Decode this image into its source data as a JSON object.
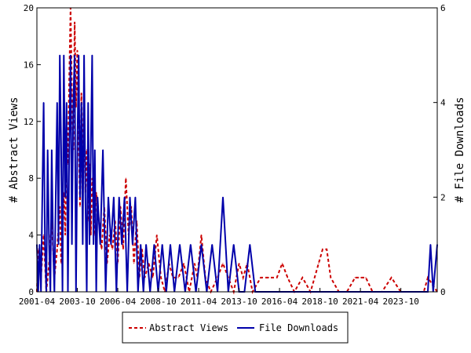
{
  "chart_data": {
    "type": "line",
    "title": "",
    "x_tick_labels": [
      "2001-04",
      "2003-10",
      "2006-04",
      "2008-10",
      "2011-04",
      "2013-10",
      "2016-04",
      "2018-10",
      "2021-04",
      "2023-10"
    ],
    "x_range": [
      "2001-04",
      "2026-01"
    ],
    "ylabel_left": "# Abstract Views",
    "ylabel_right": "# File Downloads",
    "ylim_left": [
      0,
      20
    ],
    "ylim_right": [
      0,
      6
    ],
    "y_ticks_left": [
      0,
      4,
      8,
      12,
      16,
      20
    ],
    "y_ticks_right": [
      0,
      2,
      4,
      6
    ],
    "grid": false,
    "legend_position": "bottom-center",
    "series": [
      {
        "name": "Abstract Views",
        "axis": "left",
        "style": "dashed",
        "color": "#cc0000",
        "points": [
          [
            "2001-04",
            0
          ],
          [
            "2001-05",
            3
          ],
          [
            "2001-07",
            1
          ],
          [
            "2001-09",
            4
          ],
          [
            "2001-11",
            0
          ],
          [
            "2002-01",
            2
          ],
          [
            "2002-03",
            5
          ],
          [
            "2002-05",
            1
          ],
          [
            "2002-07",
            3
          ],
          [
            "2002-09",
            6
          ],
          [
            "2002-10",
            2
          ],
          [
            "2002-12",
            7
          ],
          [
            "2003-01",
            4
          ],
          [
            "2003-02",
            12
          ],
          [
            "2003-03",
            9
          ],
          [
            "2003-04",
            15
          ],
          [
            "2003-05",
            20
          ],
          [
            "2003-06",
            14
          ],
          [
            "2003-07",
            10
          ],
          [
            "2003-08",
            19
          ],
          [
            "2003-09",
            13
          ],
          [
            "2003-10",
            17
          ],
          [
            "2003-11",
            11
          ],
          [
            "2003-12",
            6
          ],
          [
            "2004-01",
            14
          ],
          [
            "2004-02",
            9
          ],
          [
            "2004-03",
            12
          ],
          [
            "2004-04",
            7
          ],
          [
            "2004-05",
            10
          ],
          [
            "2004-06",
            5
          ],
          [
            "2004-07",
            9
          ],
          [
            "2004-08",
            4
          ],
          [
            "2004-09",
            8
          ],
          [
            "2004-10",
            6
          ],
          [
            "2004-11",
            4
          ],
          [
            "2004-12",
            7
          ],
          [
            "2005-02",
            5
          ],
          [
            "2005-04",
            3
          ],
          [
            "2005-06",
            6
          ],
          [
            "2005-08",
            2
          ],
          [
            "2005-10",
            4
          ],
          [
            "2005-12",
            3
          ],
          [
            "2006-02",
            5
          ],
          [
            "2006-04",
            2
          ],
          [
            "2006-06",
            6
          ],
          [
            "2006-08",
            3
          ],
          [
            "2006-10",
            8
          ],
          [
            "2006-12",
            4
          ],
          [
            "2007-02",
            6
          ],
          [
            "2007-04",
            2
          ],
          [
            "2007-06",
            5
          ],
          [
            "2007-08",
            1
          ],
          [
            "2007-10",
            3
          ],
          [
            "2007-12",
            1
          ],
          [
            "2008-03",
            2
          ],
          [
            "2008-06",
            1
          ],
          [
            "2008-09",
            4
          ],
          [
            "2008-12",
            1
          ],
          [
            "2009-03",
            0
          ],
          [
            "2009-06",
            2
          ],
          [
            "2009-09",
            1
          ],
          [
            "2010-01",
            1
          ],
          [
            "2010-05",
            2
          ],
          [
            "2010-09",
            0
          ],
          [
            "2011-01",
            2
          ],
          [
            "2011-03",
            1
          ],
          [
            "2011-06",
            4
          ],
          [
            "2011-09",
            1
          ],
          [
            "2012-01",
            0
          ],
          [
            "2012-06",
            1
          ],
          [
            "2012-10",
            2
          ],
          [
            "2013-02",
            1
          ],
          [
            "2013-06",
            0
          ],
          [
            "2013-10",
            2
          ],
          [
            "2014-01",
            1
          ],
          [
            "2014-04",
            2
          ],
          [
            "2014-08",
            0
          ],
          [
            "2015-02",
            1
          ],
          [
            "2015-08",
            1
          ],
          [
            "2016-02",
            1
          ],
          [
            "2016-06",
            2
          ],
          [
            "2016-10",
            1
          ],
          [
            "2017-03",
            0
          ],
          [
            "2017-09",
            1
          ],
          [
            "2018-03",
            0
          ],
          [
            "2018-09",
            2
          ],
          [
            "2018-12",
            3
          ],
          [
            "2019-03",
            3
          ],
          [
            "2019-06",
            1
          ],
          [
            "2019-12",
            0
          ],
          [
            "2020-06",
            0
          ],
          [
            "2020-12",
            1
          ],
          [
            "2021-04",
            1
          ],
          [
            "2021-08",
            1
          ],
          [
            "2022-01",
            0
          ],
          [
            "2022-08",
            0
          ],
          [
            "2023-03",
            1
          ],
          [
            "2023-10",
            0
          ],
          [
            "2024-06",
            0
          ],
          [
            "2025-03",
            0
          ],
          [
            "2025-06",
            1
          ],
          [
            "2026-01",
            0
          ]
        ]
      },
      {
        "name": "File Downloads",
        "axis": "right",
        "style": "solid",
        "color": "#0000aa",
        "points": [
          [
            "2001-04",
            1
          ],
          [
            "2001-05",
            0
          ],
          [
            "2001-06",
            1
          ],
          [
            "2001-07",
            0
          ],
          [
            "2001-08",
            2
          ],
          [
            "2001-09",
            4
          ],
          [
            "2001-10",
            1
          ],
          [
            "2001-11",
            0
          ],
          [
            "2001-12",
            3
          ],
          [
            "2002-01",
            1
          ],
          [
            "2002-02",
            0
          ],
          [
            "2002-03",
            3
          ],
          [
            "2002-04",
            1
          ],
          [
            "2002-05",
            0
          ],
          [
            "2002-06",
            2
          ],
          [
            "2002-07",
            4
          ],
          [
            "2002-08",
            1
          ],
          [
            "2002-09",
            5
          ],
          [
            "2002-10",
            3
          ],
          [
            "2002-11",
            0
          ],
          [
            "2002-12",
            5
          ],
          [
            "2003-01",
            2
          ],
          [
            "2003-02",
            4
          ],
          [
            "2003-03",
            0
          ],
          [
            "2003-04",
            3
          ],
          [
            "2003-05",
            5
          ],
          [
            "2003-06",
            1
          ],
          [
            "2003-07",
            4
          ],
          [
            "2003-08",
            5
          ],
          [
            "2003-09",
            0
          ],
          [
            "2003-10",
            3
          ],
          [
            "2003-11",
            5
          ],
          [
            "2003-12",
            2
          ],
          [
            "2004-01",
            4
          ],
          [
            "2004-02",
            1
          ],
          [
            "2004-03",
            5
          ],
          [
            "2004-04",
            2
          ],
          [
            "2004-05",
            0
          ],
          [
            "2004-06",
            4
          ],
          [
            "2004-07",
            1
          ],
          [
            "2004-08",
            3
          ],
          [
            "2004-09",
            5
          ],
          [
            "2004-10",
            1
          ],
          [
            "2004-11",
            3
          ],
          [
            "2004-12",
            0
          ],
          [
            "2005-01",
            2
          ],
          [
            "2005-03",
            1
          ],
          [
            "2005-05",
            3
          ],
          [
            "2005-07",
            0
          ],
          [
            "2005-09",
            2
          ],
          [
            "2005-11",
            1
          ],
          [
            "2006-01",
            2
          ],
          [
            "2006-03",
            0
          ],
          [
            "2006-05",
            2
          ],
          [
            "2006-07",
            1
          ],
          [
            "2006-09",
            2
          ],
          [
            "2006-11",
            0
          ],
          [
            "2007-01",
            2
          ],
          [
            "2007-03",
            1
          ],
          [
            "2007-05",
            2
          ],
          [
            "2007-07",
            0
          ],
          [
            "2007-09",
            1
          ],
          [
            "2007-11",
            0
          ],
          [
            "2008-01",
            1
          ],
          [
            "2008-04",
            0
          ],
          [
            "2008-07",
            1
          ],
          [
            "2008-10",
            0
          ],
          [
            "2009-01",
            1
          ],
          [
            "2009-04",
            0
          ],
          [
            "2009-07",
            1
          ],
          [
            "2009-10",
            0
          ],
          [
            "2010-02",
            1
          ],
          [
            "2010-06",
            0
          ],
          [
            "2010-10",
            1
          ],
          [
            "2011-02",
            0
          ],
          [
            "2011-06",
            1
          ],
          [
            "2011-10",
            0
          ],
          [
            "2012-02",
            1
          ],
          [
            "2012-06",
            0
          ],
          [
            "2012-10",
            2
          ],
          [
            "2013-02",
            0
          ],
          [
            "2013-06",
            1
          ],
          [
            "2013-10",
            0
          ],
          [
            "2014-02",
            0
          ],
          [
            "2014-06",
            1
          ],
          [
            "2014-10",
            0
          ],
          [
            "2015-04",
            0
          ],
          [
            "2016-01",
            0
          ],
          [
            "2017-01",
            0
          ],
          [
            "2018-01",
            0
          ],
          [
            "2019-01",
            0
          ],
          [
            "2020-01",
            0
          ],
          [
            "2021-01",
            0
          ],
          [
            "2022-01",
            0
          ],
          [
            "2023-01",
            0
          ],
          [
            "2024-01",
            0
          ],
          [
            "2025-01",
            0
          ],
          [
            "2025-06",
            0
          ],
          [
            "2025-08",
            1
          ],
          [
            "2025-10",
            0
          ],
          [
            "2026-01",
            1
          ]
        ]
      }
    ]
  }
}
